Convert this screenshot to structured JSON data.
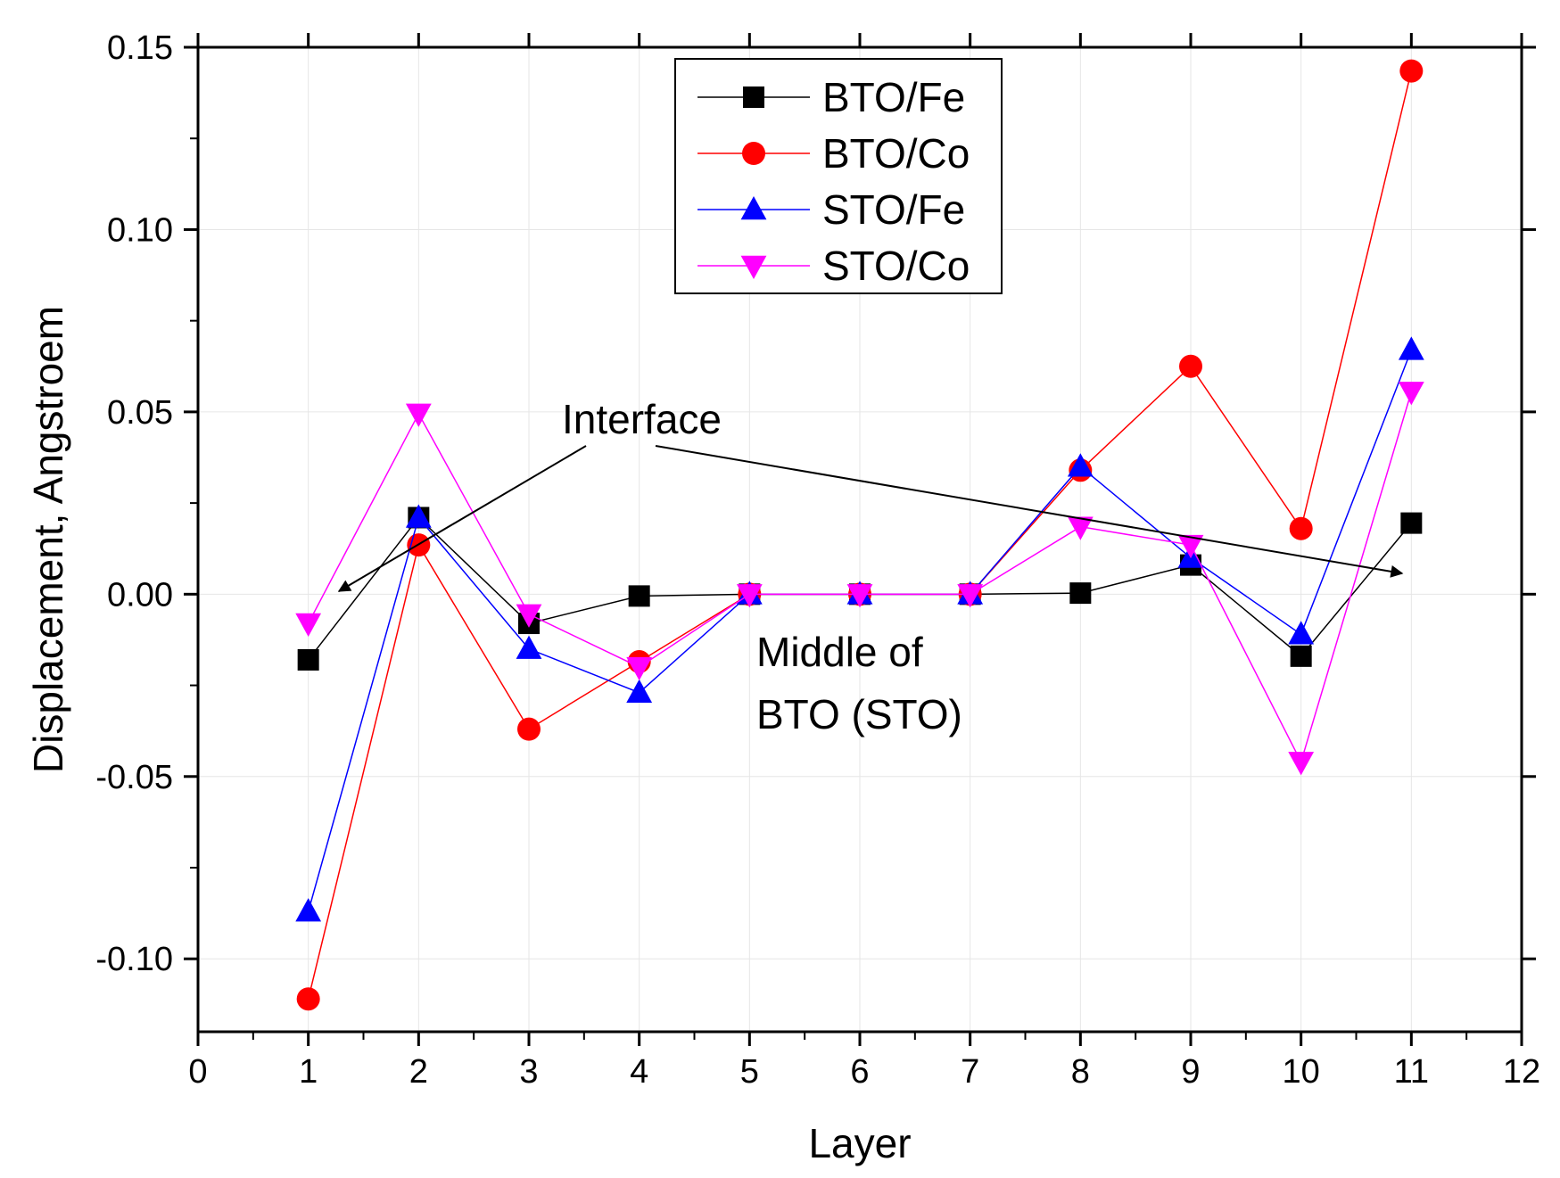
{
  "chart_data": {
    "type": "line",
    "xlabel": "Layer",
    "ylabel": "Displacement, Angstroem",
    "xlim": [
      0,
      12
    ],
    "ylim": [
      -0.12,
      0.15
    ],
    "xticks": [
      "0",
      "1",
      "2",
      "3",
      "4",
      "5",
      "6",
      "7",
      "8",
      "9",
      "10",
      "11",
      "12"
    ],
    "yticks": [
      "-0.10",
      "-0.05",
      "0.00",
      "0.05",
      "0.10",
      "0.15"
    ],
    "grid": true,
    "legend_position": "top-center",
    "x": [
      1,
      2,
      3,
      4,
      5,
      6,
      7,
      8,
      9,
      10,
      11
    ],
    "series": [
      {
        "name": "BTO/Fe",
        "color": "#000000",
        "marker": "square",
        "values": [
          -0.018,
          0.021,
          -0.008,
          -0.0005,
          0.0,
          0.0,
          0.0,
          0.0003,
          0.008,
          -0.017,
          0.0195
        ]
      },
      {
        "name": "BTO/Co",
        "color": "#ff0000",
        "marker": "circle",
        "values": [
          -0.111,
          0.0135,
          -0.037,
          -0.0185,
          0.0,
          0.0,
          0.0,
          0.034,
          0.0625,
          0.018,
          0.1435
        ]
      },
      {
        "name": "STO/Fe",
        "color": "#0000ff",
        "marker": "triangle-up",
        "values": [
          -0.087,
          0.021,
          -0.015,
          -0.027,
          0.0,
          0.0,
          0.0,
          0.035,
          0.01,
          -0.011,
          0.067
        ]
      },
      {
        "name": "STO/Co",
        "color": "#ff00ff",
        "marker": "triangle-down",
        "values": [
          -0.008,
          0.0495,
          -0.0055,
          -0.02,
          0.0,
          0.0,
          0.0,
          0.0185,
          0.0135,
          -0.046,
          0.0555
        ]
      }
    ],
    "annotations": [
      {
        "text": "Interface",
        "arrows_to": [
          [
            1.3,
            0.001
          ],
          [
            11.0,
            0.005
          ]
        ]
      },
      {
        "lines": [
          "Middle of",
          "BTO (STO)"
        ]
      }
    ]
  }
}
